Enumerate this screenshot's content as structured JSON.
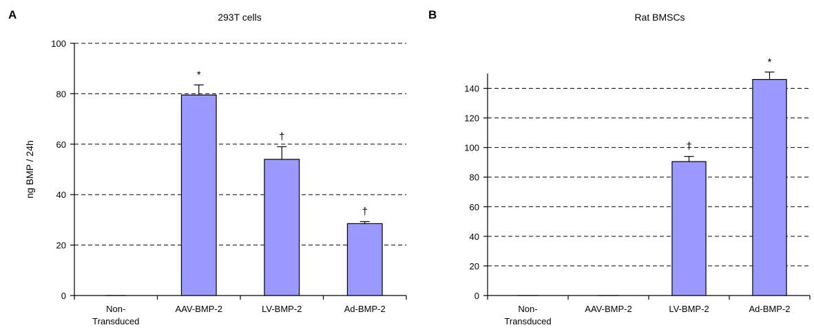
{
  "chart_data": [
    {
      "type": "bar",
      "panel_label": "A",
      "title": "293T cells",
      "ylabel": "ng BMP / 24h",
      "categories": [
        [
          "Non-",
          "Transduced"
        ],
        [
          "AAV-BMP-2"
        ],
        [
          "LV-BMP-2"
        ],
        [
          "Ad-BMP-2"
        ]
      ],
      "values": [
        0,
        79.5,
        54,
        28.5
      ],
      "errors": [
        0,
        4,
        5,
        0.8
      ],
      "annotations": [
        "",
        "*",
        "†",
        "†"
      ],
      "ylim": [
        0,
        100
      ],
      "yticks": [
        0,
        20,
        40,
        60,
        80,
        100
      ],
      "grid": true,
      "colors": {
        "bar": "#9999ff"
      }
    },
    {
      "type": "bar",
      "panel_label": "B",
      "title": "Rat BMSCs",
      "ylabel": "",
      "categories": [
        [
          "Non-",
          "Transduced"
        ],
        [
          "AAV-BMP-2"
        ],
        [
          "LV-BMP-2"
        ],
        [
          "Ad-BMP-2"
        ]
      ],
      "values": [
        0,
        0,
        90.5,
        146
      ],
      "errors": [
        0,
        0,
        3.5,
        5
      ],
      "annotations": [
        "",
        "",
        "†",
        "*"
      ],
      "ylim": [
        0,
        150
      ],
      "yticks": [
        0,
        20,
        40,
        60,
        80,
        100,
        120,
        140
      ],
      "grid": true,
      "colors": {
        "bar": "#9999ff"
      }
    }
  ]
}
